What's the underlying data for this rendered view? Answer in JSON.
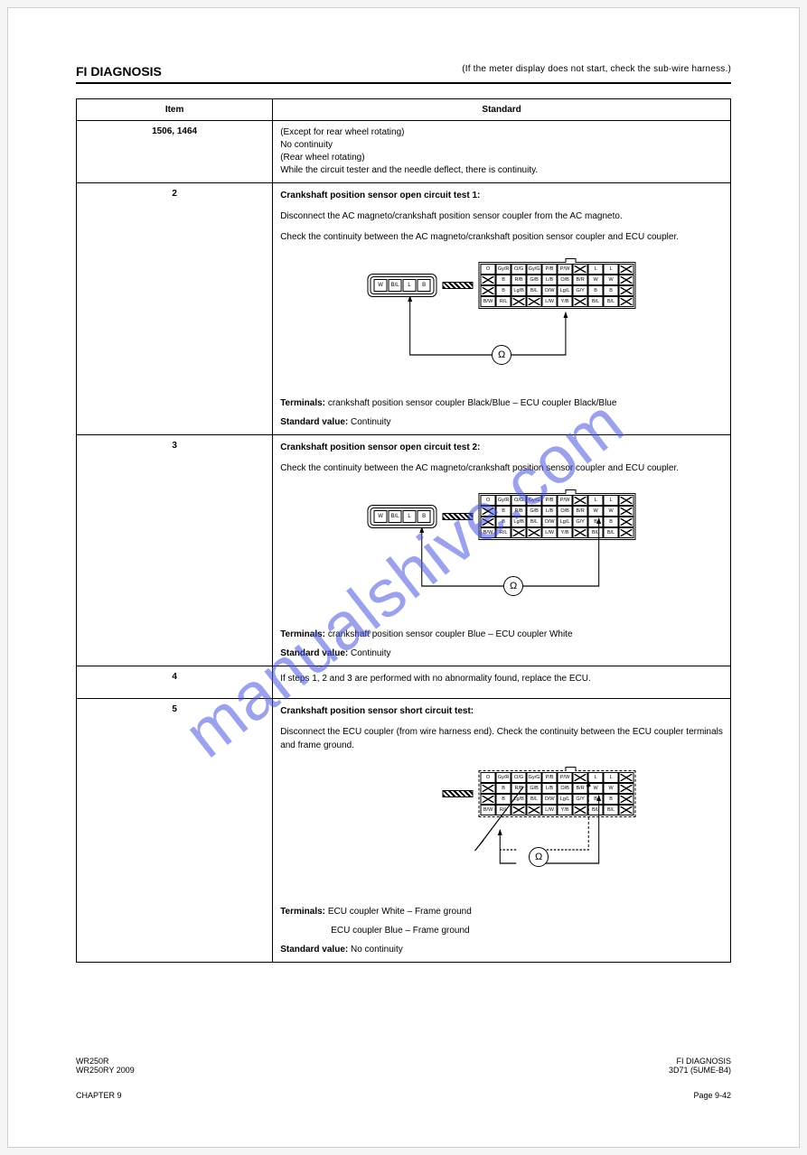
{
  "header": {
    "left": "FI DIAGNOSIS",
    "right": "(If the meter display does not start, check the sub-wire harness.)"
  },
  "codes_table": {
    "col1_label": "Item",
    "col2_label": "Standard",
    "code": "1506, 1464",
    "std_lines": [
      "(Except for rear wheel rotating)",
      "No continuity",
      "(Rear wheel rotating)",
      "While the circuit tester and the needle deflect, there is continuity."
    ]
  },
  "row2": {
    "num": "2",
    "instr1": "Crankshaft position sensor open circuit test 1:",
    "instr2": "Disconnect the AC magneto/crankshaft position sensor coupler from the AC magneto.",
    "instr3": "Check the continuity between the AC magneto/crankshaft position sensor coupler and ECU coupler.",
    "spec_label": "Terminals:",
    "spec1": "crankshaft position sensor coupler Black/Blue – ECU coupler Black/Blue",
    "std_label": "Standard value:",
    "std_val": "Continuity"
  },
  "row3": {
    "num": "3",
    "instr1": "Crankshaft position sensor open circuit test 2:",
    "instr2": "Check the continuity between the AC magneto/crankshaft position sensor coupler and ECU coupler.",
    "spec_label": "Terminals:",
    "spec1": "crankshaft position sensor coupler Blue – ECU coupler White",
    "std_label": "Standard value:",
    "std_val": "Continuity"
  },
  "row4": {
    "num": "4",
    "text": "If steps 1, 2 and 3 are performed with no abnormality found, replace the ECU."
  },
  "row5": {
    "num": "5",
    "instr1": "Crankshaft position sensor short circuit test:",
    "instr2": "Disconnect the ECU coupler (from wire harness end). Check the continuity between the ECU coupler terminals and frame ground.",
    "spec_label": "Terminals:",
    "spec1": "ECU coupler White – Frame ground",
    "spec2": "ECU coupler Blue – Frame ground",
    "std_label": "Standard value:",
    "std_val": "No continuity"
  },
  "plug_cells": [
    "W",
    "B/L",
    "L",
    "B"
  ],
  "ecu_cells": [
    {
      "t": "O"
    },
    {
      "t": "Gy/R"
    },
    {
      "t": "O/G"
    },
    {
      "t": "Gy/G"
    },
    {
      "t": "P/B"
    },
    {
      "t": "P/W"
    },
    {
      "x": true
    },
    {
      "t": "L"
    },
    {
      "t": "L"
    },
    {
      "x": true
    },
    {
      "x": true
    },
    {
      "t": "B"
    },
    {
      "t": "R/B"
    },
    {
      "t": "G/B"
    },
    {
      "t": "L/B"
    },
    {
      "t": "O/B"
    },
    {
      "t": "B/R"
    },
    {
      "t": "W"
    },
    {
      "t": "W"
    },
    {
      "x": true
    },
    {
      "x": true
    },
    {
      "t": "B"
    },
    {
      "t": "Lg/B"
    },
    {
      "t": "B/L"
    },
    {
      "t": "O/W"
    },
    {
      "t": "Lg/L"
    },
    {
      "t": "G/Y"
    },
    {
      "t": "B"
    },
    {
      "t": "B"
    },
    {
      "x": true
    },
    {
      "t": "B/W"
    },
    {
      "t": "R/L"
    },
    {
      "x": true
    },
    {
      "x": true
    },
    {
      "t": "L/W"
    },
    {
      "t": "Y/B"
    },
    {
      "x": true
    },
    {
      "t": "B/L"
    },
    {
      "t": "B/L"
    },
    {
      "x": true
    }
  ],
  "ohm_label": "Ω",
  "footer": {
    "left_a": "WR250R",
    "left_b": "WR250RY 2009",
    "right_a": "FI DIAGNOSIS",
    "right_b": "3D71 (5UME-B4)",
    "chapter": "CHAPTER 9",
    "page": "Page 9-42"
  },
  "watermark": "manualshive.com",
  "colors": {
    "text": "#000000",
    "page_bg": "#ffffff",
    "watermark": "rgba(74,83,221,0.55)",
    "border": "#000000"
  }
}
